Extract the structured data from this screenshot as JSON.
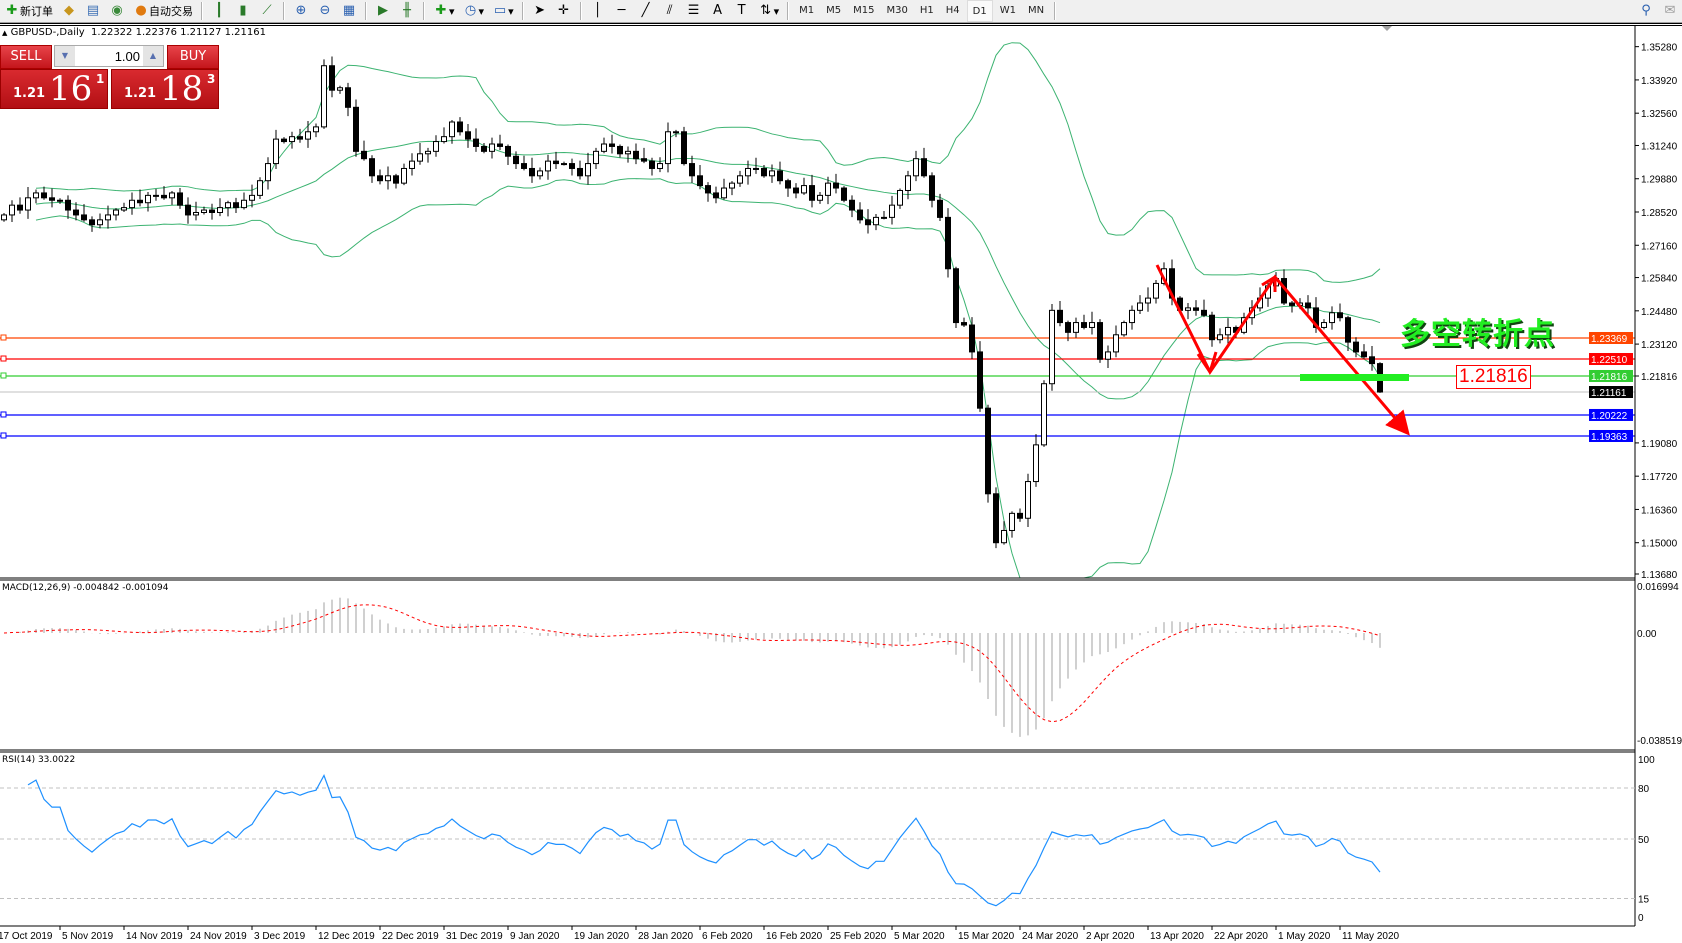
{
  "toolbar": {
    "new_order_label": "新订单",
    "auto_trading_label": "自动交易",
    "icons": [
      "new-order-icon",
      "gold-icon",
      "market-watch-icon",
      "signals-icon",
      "auto-trading-icon",
      "bar-chart-icon",
      "candlestick-icon",
      "line-chart-icon",
      "zoom-in-icon",
      "zoom-out-icon",
      "tile-windows-icon",
      "auto-scroll-icon",
      "chart-shift-icon",
      "indicators-icon",
      "periods-icon",
      "templates-icon",
      "cursor-icon",
      "crosshair-icon",
      "vertical-line-icon",
      "horizontal-line-icon",
      "trendline-icon",
      "equidistant-channel-icon",
      "fibonacci-icon",
      "text-icon",
      "text-label-icon",
      "arrows-icon"
    ],
    "timeframes": [
      "M1",
      "M5",
      "M15",
      "M30",
      "H1",
      "H4",
      "D1",
      "W1",
      "MN"
    ],
    "active_timeframe": "D1"
  },
  "header": {
    "symbol": "GBPUSD-,Daily",
    "ohlc": "1.22322 1.22376 1.21127 1.21161"
  },
  "one_click": {
    "sell_label": "SELL",
    "buy_label": "BUY",
    "lot": "1.00",
    "sell_prefix": "1.21",
    "sell_big": "16",
    "sell_sup": "1",
    "buy_prefix": "1.21",
    "buy_big": "18",
    "buy_sup": "3"
  },
  "annotation": {
    "text": "多空转折点",
    "price_label": "1.21816"
  },
  "chart_data": {
    "type": "candlestick",
    "symbol": "GBPUSD",
    "timeframe": "Daily",
    "closes": [
      1.284,
      1.288,
      1.286,
      1.291,
      1.293,
      1.291,
      1.29,
      1.29,
      1.286,
      1.284,
      1.282,
      1.28,
      1.282,
      1.284,
      1.286,
      1.287,
      1.29,
      1.289,
      1.292,
      1.292,
      1.291,
      1.293,
      1.288,
      1.284,
      1.285,
      1.286,
      1.285,
      1.287,
      1.289,
      1.287,
      1.29,
      1.292,
      1.298,
      1.305,
      1.315,
      1.314,
      1.316,
      1.315,
      1.318,
      1.32,
      1.345,
      1.335,
      1.336,
      1.328,
      1.31,
      1.307,
      1.3,
      1.298,
      1.3,
      1.297,
      1.303,
      1.306,
      1.309,
      1.31,
      1.314,
      1.316,
      1.322,
      1.318,
      1.315,
      1.312,
      1.31,
      1.313,
      1.312,
      1.308,
      1.305,
      1.303,
      1.3,
      1.302,
      1.306,
      1.305,
      1.305,
      1.303,
      1.3,
      1.305,
      1.31,
      1.313,
      1.312,
      1.309,
      1.31,
      1.307,
      1.306,
      1.303,
      1.305,
      1.318,
      1.318,
      1.305,
      1.3,
      1.296,
      1.293,
      1.291,
      1.295,
      1.297,
      1.3,
      1.303,
      1.303,
      1.3,
      1.302,
      1.298,
      1.295,
      1.293,
      1.296,
      1.29,
      1.292,
      1.297,
      1.295,
      1.29,
      1.286,
      1.282,
      1.28,
      1.283,
      1.283,
      1.288,
      1.294,
      1.3,
      1.307,
      1.3,
      1.29,
      1.283,
      1.262,
      1.24,
      1.239,
      1.228,
      1.205,
      1.17,
      1.15,
      1.155,
      1.162,
      1.16,
      1.175,
      1.19,
      1.215,
      1.245,
      1.24,
      1.236,
      1.24,
      1.238,
      1.24,
      1.225,
      1.228,
      1.235,
      1.24,
      1.245,
      1.248,
      1.25,
      1.256,
      1.262,
      1.25,
      1.245,
      1.246,
      1.245,
      1.243,
      1.233,
      1.235,
      1.238,
      1.236,
      1.242,
      1.246,
      1.25,
      1.255,
      1.258,
      1.248,
      1.247,
      1.248,
      1.246,
      1.238,
      1.24,
      1.244,
      1.242,
      1.232,
      1.228,
      1.226,
      1.22322,
      1.21161
    ],
    "last_bar": {
      "open": 1.22322,
      "high": 1.22376,
      "low": 1.21127,
      "close": 1.21161
    },
    "price_ticks": [
      "1.35280",
      "1.33920",
      "1.32560",
      "1.31240",
      "1.29880",
      "1.28520",
      "1.27160",
      "1.25840",
      "1.24480",
      "1.23120",
      "1.21816",
      "1.19080",
      "1.17720",
      "1.16360",
      "1.15000",
      "1.13680"
    ],
    "date_labels": [
      "17 Oct 2019",
      "5 Nov 2019",
      "14 Nov 2019",
      "24 Nov 2019",
      "3 Dec 2019",
      "12 Dec 2019",
      "22 Dec 2019",
      "31 Dec 2019",
      "9 Jan 2020",
      "19 Jan 2020",
      "28 Jan 2020",
      "6 Feb 2020",
      "16 Feb 2020",
      "25 Feb 2020",
      "5 Mar 2020",
      "15 Mar 2020",
      "24 Mar 2020",
      "2 Apr 2020",
      "13 Apr 2020",
      "22 Apr 2020",
      "1 May 2020",
      "11 May 2020"
    ],
    "horizontal_lines": [
      {
        "price": "1.23369",
        "color": "#ff4500"
      },
      {
        "price": "1.22510",
        "color": "#ff0000"
      },
      {
        "price": "1.21816",
        "color": "#32cd32"
      },
      {
        "price": "1.20222",
        "color": "#0000ff"
      },
      {
        "price": "1.19363",
        "color": "#0000ff"
      }
    ],
    "bid_line": {
      "price": "1.21161",
      "color": "#c0c0c0"
    },
    "bollinger": {
      "period": 20,
      "deviation": 2,
      "color": "#3cb371"
    },
    "macd": {
      "label": "MACD(12,26,9) -0.004842 -0.001094",
      "axis_max": "0.016994",
      "axis_zero": "0.00",
      "axis_min": "-0.038519",
      "histogram_color": "#c0c0c0",
      "signal_color": "#ff0000"
    },
    "rsi": {
      "label": "RSI(14) 33.0022",
      "levels": [
        "100",
        "80",
        "50",
        "15",
        "0"
      ],
      "color": "#1e90ff"
    }
  }
}
